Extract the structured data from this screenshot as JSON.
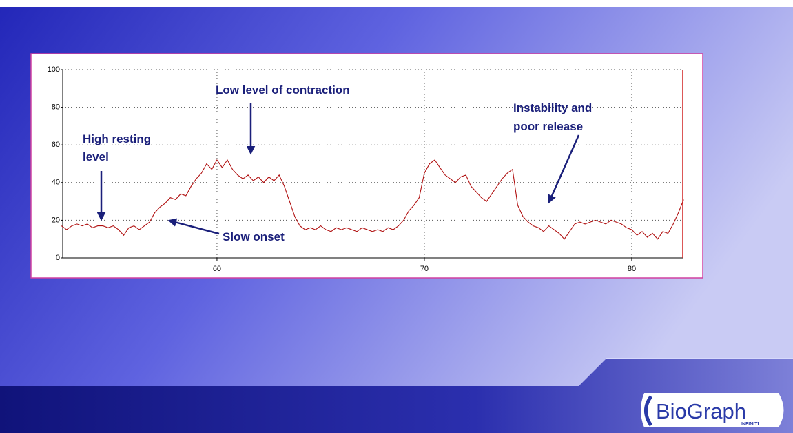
{
  "chart_data": {
    "type": "line",
    "x": [
      52.5,
      52.75,
      53,
      53.25,
      53.5,
      53.75,
      54,
      54.25,
      54.5,
      54.75,
      55,
      55.25,
      55.5,
      55.75,
      56,
      56.25,
      56.5,
      56.75,
      57,
      57.25,
      57.5,
      57.75,
      58,
      58.25,
      58.5,
      58.75,
      59,
      59.25,
      59.5,
      59.75,
      60,
      60.25,
      60.5,
      60.75,
      61,
      61.25,
      61.5,
      61.75,
      62,
      62.25,
      62.5,
      62.75,
      63,
      63.25,
      63.5,
      63.75,
      64,
      64.25,
      64.5,
      64.75,
      65,
      65.25,
      65.5,
      65.75,
      66,
      66.25,
      66.5,
      66.75,
      67,
      67.25,
      67.5,
      67.75,
      68,
      68.25,
      68.5,
      68.75,
      69,
      69.25,
      69.5,
      69.75,
      70,
      70.25,
      70.5,
      70.75,
      71,
      71.25,
      71.5,
      71.75,
      72,
      72.25,
      72.5,
      72.75,
      73,
      73.25,
      73.5,
      73.75,
      74,
      74.25,
      74.5,
      74.75,
      75,
      75.25,
      75.5,
      75.75,
      76,
      76.25,
      76.5,
      76.75,
      77,
      77.25,
      77.5,
      77.75,
      78,
      78.25,
      78.5,
      78.75,
      79,
      79.25,
      79.5,
      79.75,
      80,
      80.25,
      80.5,
      80.75,
      81,
      81.25,
      81.5,
      81.75,
      82,
      82.25,
      82.5
    ],
    "series": [
      {
        "color": "#b01010",
        "values": [
          17,
          15,
          17,
          18,
          17,
          18,
          16,
          17,
          17,
          16,
          17,
          15,
          12,
          16,
          17,
          15,
          17,
          19,
          24,
          27,
          29,
          32,
          31,
          34,
          33,
          38,
          42,
          45,
          50,
          47,
          52,
          48,
          52,
          47,
          44,
          42,
          44,
          41,
          43,
          40,
          43,
          41,
          44,
          38,
          30,
          22,
          17,
          15,
          16,
          15,
          17,
          15,
          14,
          16,
          15,
          16,
          15,
          14,
          16,
          15,
          14,
          15,
          14,
          16,
          15,
          17,
          20,
          25,
          28,
          32,
          45,
          50,
          52,
          48,
          44,
          42,
          40,
          43,
          44,
          38,
          35,
          32,
          30,
          34,
          38,
          42,
          45,
          47,
          28,
          22,
          19,
          17,
          16,
          14,
          17,
          15,
          13,
          10,
          14,
          18,
          19,
          18,
          19,
          20,
          19,
          18,
          20,
          19,
          18,
          16,
          15,
          12,
          14,
          11,
          13,
          10,
          14,
          13,
          18,
          24,
          31
        ]
      }
    ],
    "xlim": [
      52.56,
      82.46
    ],
    "xticks": [
      60,
      70,
      80
    ],
    "ylim": [
      0,
      100
    ],
    "yticks": [
      0,
      20,
      40,
      60,
      80,
      100
    ],
    "grid": true,
    "annotations": [
      {
        "lines": [
          "High resting",
          "level"
        ]
      },
      {
        "lines": [
          "Low level of contraction"
        ]
      },
      {
        "lines": [
          "Instability and",
          "poor release"
        ]
      },
      {
        "lines": [
          "Slow onset"
        ]
      }
    ]
  },
  "logo": {
    "name": "BioGraph",
    "subtitle": "INFINITI"
  }
}
